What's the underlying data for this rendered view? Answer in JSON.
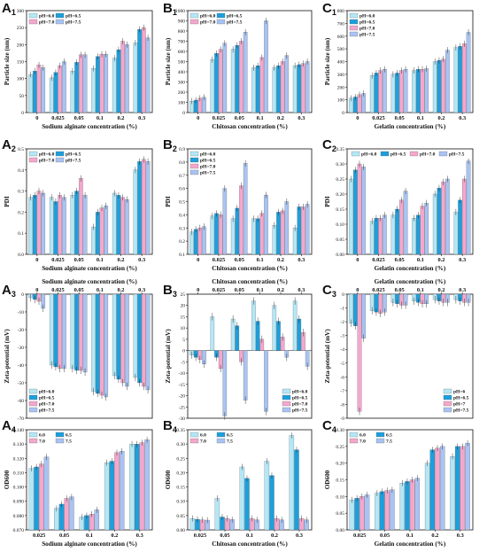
{
  "colors": {
    "s1": "#b4e7f6",
    "s2": "#1e9fdc",
    "s3": "#f4a7cd",
    "s4": "#a9c3f2",
    "axis": "#111111",
    "err": "#111111"
  },
  "chart_data": [
    {
      "id": "A1",
      "label": "A",
      "sub": "1",
      "type": "bar",
      "xlabel": "Sodium alginate concentration (%)",
      "ylabel": "Particle size (nm)",
      "ylim": [
        0,
        300
      ],
      "yticks": [
        0,
        50,
        100,
        150,
        200,
        250,
        300
      ],
      "categories": [
        "0",
        "0.025",
        "0.05",
        "0.1",
        "0.2",
        "0.3"
      ],
      "legend": {
        "labels": [
          "pH=6.0",
          "pH=6.5",
          "pH=7.0",
          "pH=7.5"
        ],
        "columns": 2,
        "position": "top-left"
      },
      "series": [
        {
          "name": "pH=6.0",
          "values": [
            112,
            102,
            122,
            130,
            160,
            205
          ]
        },
        {
          "name": "pH=6.5",
          "values": [
            122,
            118,
            148,
            165,
            185,
            245
          ]
        },
        {
          "name": "pH=7.0",
          "values": [
            140,
            138,
            170,
            172,
            210,
            250
          ]
        },
        {
          "name": "pH=7.5",
          "values": [
            132,
            150,
            170,
            172,
            200,
            220
          ]
        }
      ]
    },
    {
      "id": "B1",
      "label": "B",
      "sub": "1",
      "type": "bar",
      "xlabel": "Chitosan concentration (%)",
      "ylabel": "Particle size (nm)",
      "ylim": [
        0,
        1000
      ],
      "yticks": [
        0,
        100,
        200,
        300,
        400,
        500,
        600,
        700,
        800,
        900,
        1000
      ],
      "categories": [
        "0",
        "0.025",
        "0.05",
        "0.1",
        "0.2",
        "0.3"
      ],
      "legend": {
        "labels": [
          "pH=6.0",
          "pH=6.5",
          "pH=7.0",
          "pH=7.5"
        ],
        "columns": 2,
        "position": "top-left"
      },
      "series": [
        {
          "name": "pH=6.0",
          "values": [
            112,
            520,
            620,
            440,
            440,
            460
          ]
        },
        {
          "name": "pH=6.5",
          "values": [
            122,
            580,
            660,
            460,
            460,
            470
          ]
        },
        {
          "name": "pH=7.0",
          "values": [
            140,
            620,
            700,
            540,
            500,
            480
          ]
        },
        {
          "name": "pH=7.5",
          "values": [
            150,
            680,
            790,
            900,
            560,
            500
          ]
        }
      ]
    },
    {
      "id": "C1",
      "label": "C",
      "sub": "1",
      "type": "bar",
      "xlabel": "Gelatin concentration (%)",
      "ylabel": "Particle size (nm)",
      "ylim": [
        0,
        800
      ],
      "yticks": [
        0,
        100,
        200,
        300,
        400,
        500,
        600,
        700,
        800
      ],
      "categories": [
        "0",
        "0.025",
        "0.05",
        "0.1",
        "0.2",
        "0.3"
      ],
      "legend": {
        "labels": [
          "pH=6.0",
          "pH=6.5",
          "pH=7.0",
          "pH=7.5"
        ],
        "columns": 1,
        "position": "top-left"
      },
      "series": [
        {
          "name": "pH=6.0",
          "values": [
            112,
            290,
            300,
            330,
            400,
            510
          ]
        },
        {
          "name": "pH=6.5",
          "values": [
            122,
            310,
            310,
            340,
            410,
            520
          ]
        },
        {
          "name": "pH=7.0",
          "values": [
            140,
            330,
            330,
            340,
            420,
            540
          ]
        },
        {
          "name": "pH=7.5",
          "values": [
            150,
            340,
            340,
            345,
            490,
            630
          ]
        }
      ]
    },
    {
      "id": "A2",
      "label": "A",
      "sub": "2",
      "type": "bar",
      "xlabel": "Sodium alginate concentration (%)",
      "ylabel": "PDI",
      "ylim": [
        0,
        0.5
      ],
      "yticks": [
        0.0,
        0.1,
        0.2,
        0.3,
        0.4,
        0.5
      ],
      "categories": [
        "0",
        "0.025",
        "0.05",
        "0.1",
        "0.2",
        "0.3"
      ],
      "legend": {
        "labels": [
          "pH=6.0",
          "pH=6.5",
          "pH=7.0",
          "pH=7.5"
        ],
        "columns": 2,
        "position": "top-left"
      },
      "series": [
        {
          "name": "pH=6.0",
          "values": [
            0.27,
            0.27,
            0.28,
            0.13,
            0.29,
            0.4
          ]
        },
        {
          "name": "pH=6.5",
          "values": [
            0.28,
            0.25,
            0.3,
            0.2,
            0.28,
            0.44
          ]
        },
        {
          "name": "pH=7.0",
          "values": [
            0.3,
            0.28,
            0.36,
            0.22,
            0.27,
            0.45
          ]
        },
        {
          "name": "pH=7.5",
          "values": [
            0.29,
            0.27,
            0.28,
            0.23,
            0.26,
            0.44
          ]
        }
      ]
    },
    {
      "id": "B2",
      "label": "B",
      "sub": "2",
      "type": "bar",
      "xlabel": "Chitosan concentration (%)",
      "ylabel": "PDI",
      "ylim": [
        0.1,
        0.9
      ],
      "yticks": [
        0.1,
        0.2,
        0.3,
        0.4,
        0.5,
        0.6,
        0.7,
        0.8,
        0.9
      ],
      "categories": [
        "0",
        "0.025",
        "0.05",
        "0.1",
        "0.2",
        "0.3"
      ],
      "legend": {
        "labels": [
          "pH=6.0",
          "pH=6.5",
          "pH=7.0",
          "pH=7.5"
        ],
        "columns": 1,
        "position": "top-left"
      },
      "series": [
        {
          "name": "pH=6.0",
          "values": [
            0.27,
            0.39,
            0.37,
            0.37,
            0.32,
            0.3
          ]
        },
        {
          "name": "pH=6.5",
          "values": [
            0.29,
            0.41,
            0.45,
            0.37,
            0.42,
            0.46
          ]
        },
        {
          "name": "pH=7.0",
          "values": [
            0.3,
            0.4,
            0.62,
            0.41,
            0.43,
            0.46
          ]
        },
        {
          "name": "pH=7.5",
          "values": [
            0.31,
            0.6,
            0.79,
            0.55,
            0.5,
            0.48
          ]
        }
      ]
    },
    {
      "id": "C2",
      "label": "C",
      "sub": "2",
      "type": "bar",
      "xlabel": "Gelatin concentration (%)",
      "ylabel": "PDI",
      "ylim": [
        0,
        0.35
      ],
      "yticks": [
        0.0,
        0.05,
        0.1,
        0.15,
        0.2,
        0.25,
        0.3,
        0.35
      ],
      "categories": [
        "0",
        "0.025",
        "0.05",
        "0.1",
        "0.2",
        "0.3"
      ],
      "legend": {
        "labels": [
          "pH=6.0",
          "pH=6.5",
          "pH=7.0",
          "pH=7.5"
        ],
        "columns": 4,
        "position": "top"
      },
      "series": [
        {
          "name": "pH=6.0",
          "values": [
            0.25,
            0.11,
            0.13,
            0.12,
            0.2,
            0.14
          ]
        },
        {
          "name": "pH=6.5",
          "values": [
            0.28,
            0.12,
            0.15,
            0.13,
            0.22,
            0.18
          ]
        },
        {
          "name": "pH=7.0",
          "values": [
            0.3,
            0.12,
            0.18,
            0.16,
            0.24,
            0.25
          ]
        },
        {
          "name": "pH=7.5",
          "values": [
            0.29,
            0.13,
            0.21,
            0.17,
            0.25,
            0.31
          ]
        }
      ]
    },
    {
      "id": "A3",
      "label": "A",
      "sub": "3",
      "type": "bar",
      "xlabel": "Sodium alginate concentration (%)",
      "xaxis_position": "top",
      "ylabel": "Zeta-potential (mV)",
      "ylim": [
        -70,
        0
      ],
      "yticks": [
        0,
        -10,
        -20,
        -30,
        -40,
        -50,
        -60,
        -70
      ],
      "categories": [
        "0",
        "0.025",
        "0.05",
        "0.1",
        "0.2",
        "0.3"
      ],
      "legend": {
        "labels": [
          "pH=6.0",
          "pH=6.5",
          "pH=7.0",
          "pH=7.5"
        ],
        "columns": 1,
        "position": "bottom-left"
      },
      "series": [
        {
          "name": "pH=6.0",
          "values": [
            -2,
            -40,
            -42,
            -55,
            -46,
            -47
          ]
        },
        {
          "name": "pH=6.5",
          "values": [
            -3,
            -41,
            -43,
            -56,
            -48,
            -50
          ]
        },
        {
          "name": "pH=7.0",
          "values": [
            -4,
            -42,
            -43,
            -57,
            -50,
            -52
          ]
        },
        {
          "name": "pH=7.5",
          "values": [
            -8,
            -42,
            -44,
            -58,
            -52,
            -54
          ]
        }
      ]
    },
    {
      "id": "B3",
      "label": "B",
      "sub": "3",
      "type": "bar",
      "xlabel": "Chitosan concentration (%)",
      "xaxis_position": "top",
      "ylabel": "Zeta-potential (mV)",
      "ylim": [
        -30,
        25
      ],
      "yticks": [
        -30,
        -25,
        -20,
        -15,
        -10,
        -5,
        0,
        5,
        10,
        15,
        20,
        25
      ],
      "categories": [
        "0",
        "0.025",
        "0.05",
        "0.1",
        "0.2",
        "0.3"
      ],
      "legend": {
        "labels": [
          "pH=6.0",
          "pH=6.5",
          "pH=7.0",
          "pH=7.5"
        ],
        "columns": 1,
        "position": "bottom-right"
      },
      "series": [
        {
          "name": "pH=6.0",
          "values": [
            -2,
            15,
            14,
            22,
            20,
            22
          ]
        },
        {
          "name": "pH=6.5",
          "values": [
            -3,
            -3,
            11,
            13,
            13,
            14
          ]
        },
        {
          "name": "pH=7.0",
          "values": [
            -4,
            -8,
            -5,
            5,
            6,
            8
          ]
        },
        {
          "name": "pH=7.5",
          "values": [
            -6,
            -29,
            -22,
            -27,
            -3,
            -7
          ]
        }
      ]
    },
    {
      "id": "C3",
      "label": "C",
      "sub": "3",
      "type": "bar",
      "xlabel": "Gelatin concentration (%)",
      "xaxis_position": "top",
      "ylabel": "Zeta-potential (mV)",
      "ylim": [
        -9,
        0
      ],
      "yticks": [
        0,
        -1,
        -2,
        -3,
        -4,
        -5,
        -6,
        -7,
        -8,
        -9
      ],
      "categories": [
        "0",
        "0.025",
        "0.05",
        "0.1",
        "0.2",
        "0.3"
      ],
      "legend": {
        "labels": [
          "pH=6",
          "pH=6.5",
          "pH=7",
          "pH=7.5"
        ],
        "columns": 1,
        "position": "bottom-right"
      },
      "series": [
        {
          "name": "pH=6",
          "values": [
            -2.1,
            -1.2,
            -0.6,
            -0.5,
            -0.4,
            -0.4
          ]
        },
        {
          "name": "pH=6.5",
          "values": [
            -2.3,
            -1.3,
            -0.7,
            -0.6,
            -0.5,
            -0.5
          ]
        },
        {
          "name": "pH=7",
          "values": [
            -8.5,
            -1.4,
            -0.8,
            -0.7,
            -0.6,
            -0.6
          ]
        },
        {
          "name": "pH=7.5",
          "values": [
            -3.2,
            -1.3,
            -0.8,
            -0.7,
            -0.6,
            -0.6
          ]
        }
      ]
    },
    {
      "id": "A4",
      "label": "A",
      "sub": "4",
      "type": "bar",
      "xlabel": "Sodium alginate concentration (%)",
      "ylabel": "OD600",
      "ylim": [
        0.07,
        0.14
      ],
      "yticks": [
        0.07,
        0.08,
        0.09,
        0.1,
        0.11,
        0.12,
        0.13,
        0.14
      ],
      "categories": [
        "0.025",
        "0.05",
        "0.1",
        "0.2",
        "0.3"
      ],
      "legend": {
        "labels": [
          "6.0",
          "6.5",
          "7.0",
          "7.5"
        ],
        "columns": 2,
        "position": "top-left"
      },
      "series": [
        {
          "name": "6.0",
          "values": [
            0.113,
            0.085,
            0.079,
            0.117,
            0.13
          ]
        },
        {
          "name": "6.5",
          "values": [
            0.114,
            0.088,
            0.08,
            0.118,
            0.13
          ]
        },
        {
          "name": "7.0",
          "values": [
            0.116,
            0.092,
            0.081,
            0.124,
            0.131
          ]
        },
        {
          "name": "7.5",
          "values": [
            0.121,
            0.093,
            0.084,
            0.125,
            0.133
          ]
        }
      ]
    },
    {
      "id": "B4",
      "label": "B",
      "sub": "4",
      "type": "bar",
      "xlabel": "Chitosan concentration (%)",
      "ylabel": "OD600",
      "ylim": [
        0,
        0.35
      ],
      "yticks": [
        0.0,
        0.05,
        0.1,
        0.15,
        0.2,
        0.25,
        0.3,
        0.35
      ],
      "categories": [
        "0.025",
        "0.05",
        "0.1",
        "0.2",
        "0.3"
      ],
      "legend": {
        "labels": [
          "6.0",
          "6.5",
          "7.0",
          "7.5"
        ],
        "columns": 2,
        "position": "top-left"
      },
      "series": [
        {
          "name": "6.0",
          "values": [
            0.04,
            0.11,
            0.22,
            0.24,
            0.33
          ]
        },
        {
          "name": "6.5",
          "values": [
            0.037,
            0.045,
            0.18,
            0.19,
            0.28
          ]
        },
        {
          "name": "7.0",
          "values": [
            0.035,
            0.04,
            0.04,
            0.04,
            0.04
          ]
        },
        {
          "name": "7.5",
          "values": [
            0.034,
            0.036,
            0.035,
            0.035,
            0.035
          ]
        }
      ]
    },
    {
      "id": "C4",
      "label": "C",
      "sub": "4",
      "type": "bar",
      "xlabel": "Gelatin concentration (%)",
      "ylabel": "OD600",
      "ylim": [
        0,
        0.3
      ],
      "yticks": [
        0.0,
        0.05,
        0.1,
        0.15,
        0.2,
        0.25,
        0.3
      ],
      "categories": [
        "0.025",
        "0.05",
        "0.1",
        "0.2",
        "0.3"
      ],
      "legend": {
        "labels": [
          "6.0",
          "6.5",
          "7.0",
          "7.5"
        ],
        "columns": 2,
        "position": "top-left"
      },
      "series": [
        {
          "name": "6.0",
          "values": [
            0.09,
            0.11,
            0.14,
            0.2,
            0.22
          ]
        },
        {
          "name": "6.5",
          "values": [
            0.095,
            0.115,
            0.145,
            0.24,
            0.25
          ]
        },
        {
          "name": "7.0",
          "values": [
            0.1,
            0.118,
            0.15,
            0.245,
            0.25
          ]
        },
        {
          "name": "7.5",
          "values": [
            0.105,
            0.12,
            0.155,
            0.25,
            0.26
          ]
        }
      ]
    }
  ]
}
